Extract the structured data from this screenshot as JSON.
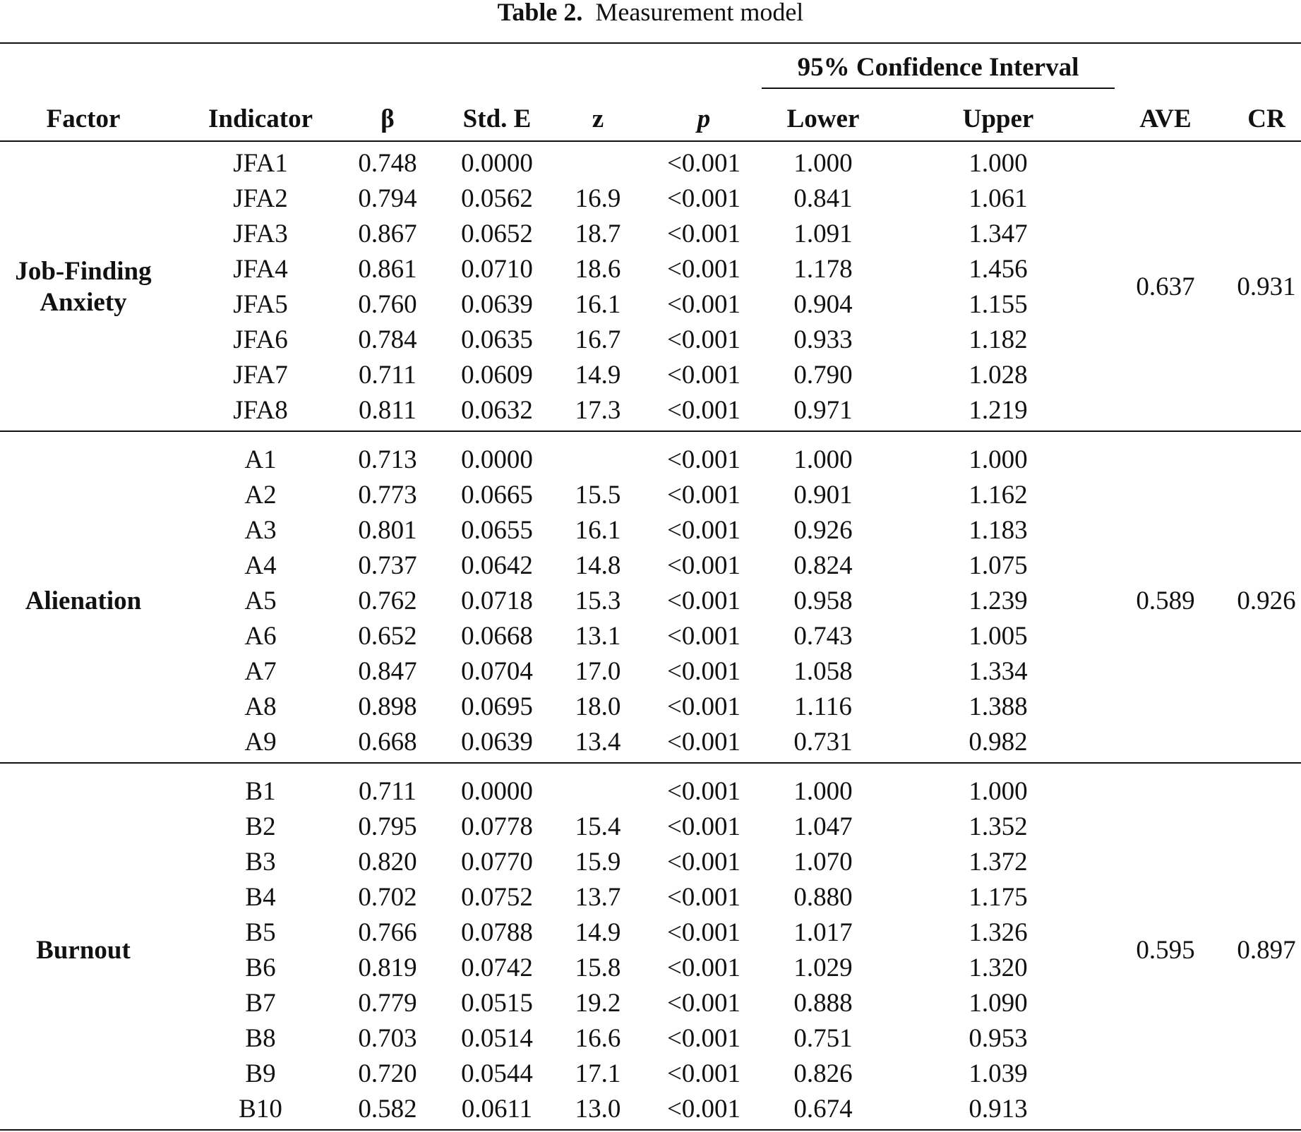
{
  "caption": {
    "label": "Table 2.",
    "title": "Measurement model"
  },
  "table": {
    "header": {
      "group": "95% Confidence Interval",
      "columns": [
        "Factor",
        "Indicator",
        "β",
        "Std. E",
        "z",
        "p",
        "Lower",
        "Upper",
        "AVE",
        "CR"
      ]
    },
    "groups": [
      {
        "factor": "Job-Finding Anxiety",
        "ave": "0.637",
        "cr": "0.931",
        "rows": [
          [
            "JFA1",
            "0.748",
            "0.0000",
            null,
            "<0.001",
            "1.000",
            "1.000"
          ],
          [
            "JFA2",
            "0.794",
            "0.0562",
            "16.9",
            "<0.001",
            "0.841",
            "1.061"
          ],
          [
            "JFA3",
            "0.867",
            "0.0652",
            "18.7",
            "<0.001",
            "1.091",
            "1.347"
          ],
          [
            "JFA4",
            "0.861",
            "0.0710",
            "18.6",
            "<0.001",
            "1.178",
            "1.456"
          ],
          [
            "JFA5",
            "0.760",
            "0.0639",
            "16.1",
            "<0.001",
            "0.904",
            "1.155"
          ],
          [
            "JFA6",
            "0.784",
            "0.0635",
            "16.7",
            "<0.001",
            "0.933",
            "1.182"
          ],
          [
            "JFA7",
            "0.711",
            "0.0609",
            "14.9",
            "<0.001",
            "0.790",
            "1.028"
          ],
          [
            "JFA8",
            "0.811",
            "0.0632",
            "17.3",
            "<0.001",
            "0.971",
            "1.219"
          ]
        ]
      },
      {
        "factor": "Alienation",
        "ave": "0.589",
        "cr": "0.926",
        "rows": [
          [
            "A1",
            "0.713",
            "0.0000",
            null,
            "<0.001",
            "1.000",
            "1.000"
          ],
          [
            "A2",
            "0.773",
            "0.0665",
            "15.5",
            "<0.001",
            "0.901",
            "1.162"
          ],
          [
            "A3",
            "0.801",
            "0.0655",
            "16.1",
            "<0.001",
            "0.926",
            "1.183"
          ],
          [
            "A4",
            "0.737",
            "0.0642",
            "14.8",
            "<0.001",
            "0.824",
            "1.075"
          ],
          [
            "A5",
            "0.762",
            "0.0718",
            "15.3",
            "<0.001",
            "0.958",
            "1.239"
          ],
          [
            "A6",
            "0.652",
            "0.0668",
            "13.1",
            "<0.001",
            "0.743",
            "1.005"
          ],
          [
            "A7",
            "0.847",
            "0.0704",
            "17.0",
            "<0.001",
            "1.058",
            "1.334"
          ],
          [
            "A8",
            "0.898",
            "0.0695",
            "18.0",
            "<0.001",
            "1.116",
            "1.388"
          ],
          [
            "A9",
            "0.668",
            "0.0639",
            "13.4",
            "<0.001",
            "0.731",
            "0.982"
          ]
        ]
      },
      {
        "factor": "Burnout",
        "ave": "0.595",
        "cr": "0.897",
        "rows": [
          [
            "B1",
            "0.711",
            "0.0000",
            null,
            "<0.001",
            "1.000",
            "1.000"
          ],
          [
            "B2",
            "0.795",
            "0.0778",
            "15.4",
            "<0.001",
            "1.047",
            "1.352"
          ],
          [
            "B3",
            "0.820",
            "0.0770",
            "15.9",
            "<0.001",
            "1.070",
            "1.372"
          ],
          [
            "B4",
            "0.702",
            "0.0752",
            "13.7",
            "<0.001",
            "0.880",
            "1.175"
          ],
          [
            "B5",
            "0.766",
            "0.0788",
            "14.9",
            "<0.001",
            "1.017",
            "1.326"
          ],
          [
            "B6",
            "0.819",
            "0.0742",
            "15.8",
            "<0.001",
            "1.029",
            "1.320"
          ],
          [
            "B7",
            "0.779",
            "0.0515",
            "19.2",
            "<0.001",
            "0.888",
            "1.090"
          ],
          [
            "B8",
            "0.703",
            "0.0514",
            "16.6",
            "<0.001",
            "0.751",
            "0.953"
          ],
          [
            "B9",
            "0.720",
            "0.0544",
            "17.1",
            "<0.001",
            "0.826",
            "1.039"
          ],
          [
            "B10",
            "0.582",
            "0.0611",
            "13.0",
            "<0.001",
            "0.674",
            "0.913"
          ]
        ]
      }
    ]
  }
}
